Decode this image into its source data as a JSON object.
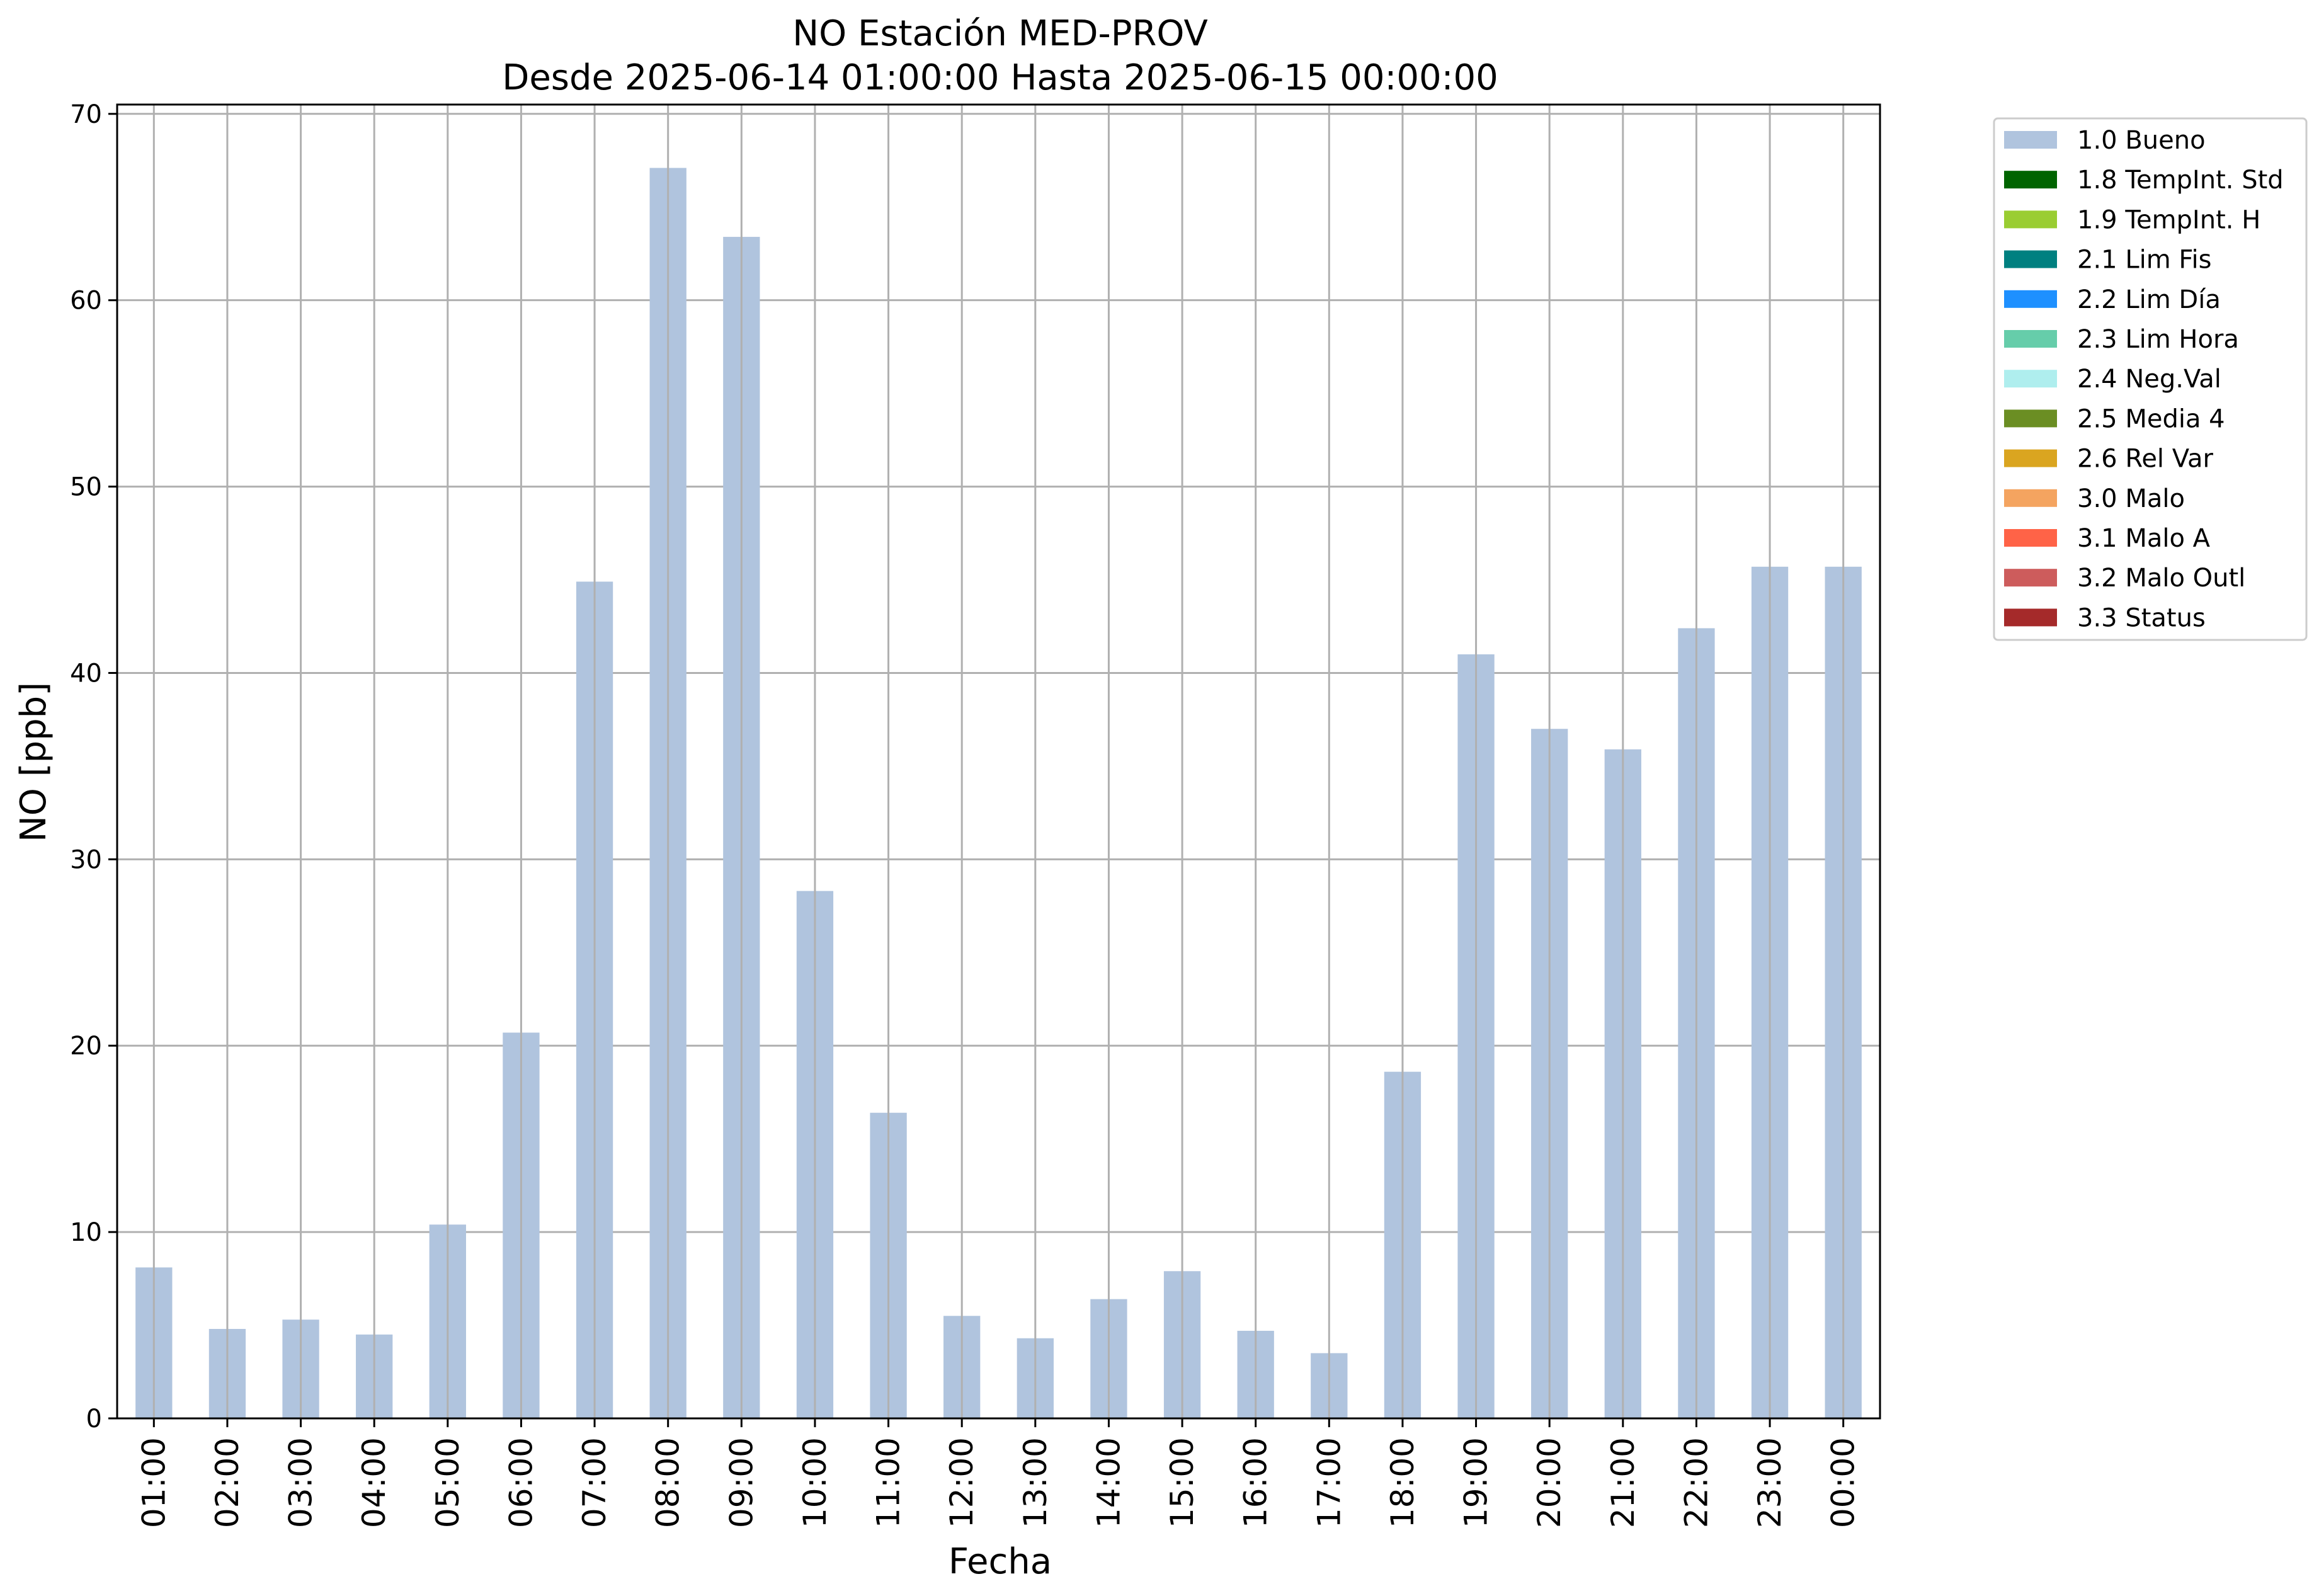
{
  "chart_data": {
    "type": "bar",
    "title": "NO Estación MED-PROV",
    "subtitle": "Desde 2025-06-14 01:00:00 Hasta 2025-06-15 00:00:00",
    "xlabel": "Fecha",
    "ylabel": "NO [ppb]",
    "ylim": [
      0,
      70.5
    ],
    "yticks": [
      0,
      10,
      20,
      30,
      40,
      50,
      60,
      70
    ],
    "grid": true,
    "legend_position": "outside-top-right",
    "categories": [
      "01:00",
      "02:00",
      "03:00",
      "04:00",
      "05:00",
      "06:00",
      "07:00",
      "08:00",
      "09:00",
      "10:00",
      "11:00",
      "12:00",
      "13:00",
      "14:00",
      "15:00",
      "16:00",
      "17:00",
      "18:00",
      "19:00",
      "20:00",
      "21:00",
      "22:00",
      "23:00",
      "00:00"
    ],
    "series": [
      {
        "name": "1.0 Bueno",
        "color": "#b0c4de",
        "values": [
          8.1,
          4.8,
          5.3,
          4.5,
          10.4,
          20.7,
          44.9,
          67.1,
          63.4,
          28.3,
          16.4,
          5.5,
          4.3,
          6.4,
          7.9,
          4.7,
          3.5,
          18.6,
          41.0,
          37.0,
          35.9,
          42.4,
          45.7,
          45.7
        ]
      }
    ],
    "legend": [
      {
        "label": "1.0 Bueno",
        "color": "#b0c4de"
      },
      {
        "label": "1.8 TempInt. Std",
        "color": "#006400"
      },
      {
        "label": "1.9 TempInt. H",
        "color": "#9acd32"
      },
      {
        "label": "2.1 Lim Fis",
        "color": "#008080"
      },
      {
        "label": "2.2 Lim Día",
        "color": "#1e90ff"
      },
      {
        "label": "2.3 Lim Hora",
        "color": "#66cdaa"
      },
      {
        "label": "2.4 Neg.Val",
        "color": "#afeeee"
      },
      {
        "label": "2.5 Media 4",
        "color": "#6b8e23"
      },
      {
        "label": "2.6 Rel Var",
        "color": "#daa520"
      },
      {
        "label": "3.0 Malo",
        "color": "#f4a460"
      },
      {
        "label": "3.1 Malo A",
        "color": "#ff6347"
      },
      {
        "label": "3.2 Malo Outl",
        "color": "#cd5c5c"
      },
      {
        "label": "3.3 Status",
        "color": "#a52a2a"
      }
    ]
  }
}
